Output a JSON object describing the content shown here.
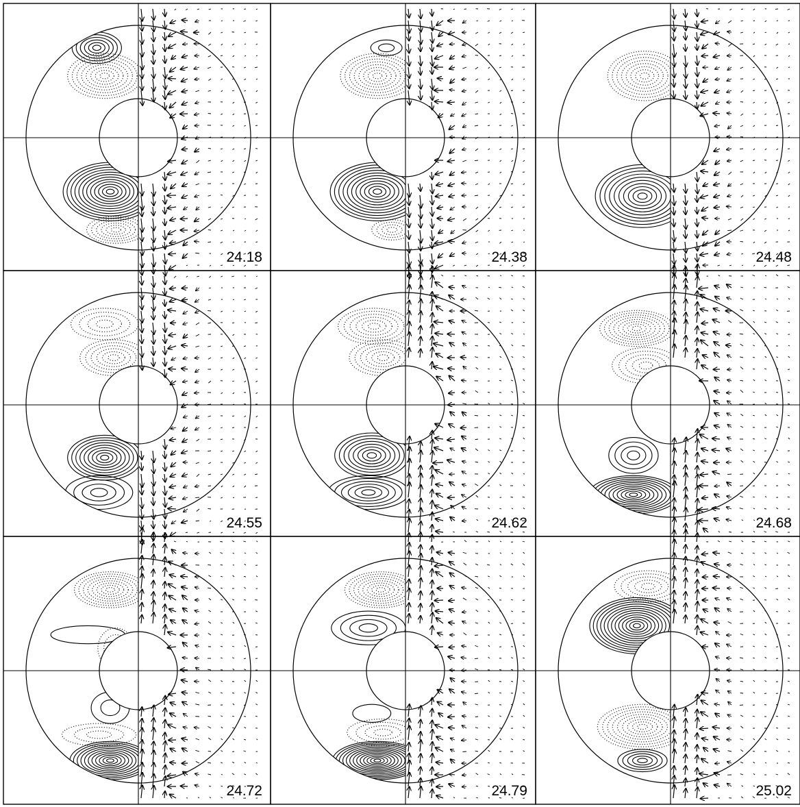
{
  "figure": {
    "line_color": "#000000",
    "background": "#ffffff",
    "panels": [
      {
        "label": "24.18",
        "contours": [
          {
            "type": "solid",
            "cx": -0.37,
            "cy": -0.8,
            "rx": 0.22,
            "ry": 0.14,
            "n": 6
          },
          {
            "type": "dotted",
            "cx": -0.3,
            "cy": -0.55,
            "rx": 0.33,
            "ry": 0.2,
            "n": 8
          },
          {
            "type": "solid",
            "cx": -0.25,
            "cy": 0.48,
            "rx": 0.42,
            "ry": 0.26,
            "n": 12
          },
          {
            "type": "dotted",
            "cx": -0.2,
            "cy": 0.82,
            "rx": 0.26,
            "ry": 0.12,
            "n": 6
          }
        ],
        "arrows": {
          "top": "down",
          "bottom": "down",
          "dense": 0.65
        }
      },
      {
        "label": "24.38",
        "contours": [
          {
            "type": "solid",
            "cx": -0.17,
            "cy": -0.8,
            "rx": 0.14,
            "ry": 0.07,
            "n": 2
          },
          {
            "type": "dotted",
            "cx": -0.25,
            "cy": -0.55,
            "rx": 0.33,
            "ry": 0.2,
            "n": 8
          },
          {
            "type": "solid",
            "cx": -0.25,
            "cy": 0.48,
            "rx": 0.42,
            "ry": 0.26,
            "n": 11
          },
          {
            "type": "dotted",
            "cx": -0.12,
            "cy": 0.82,
            "rx": 0.18,
            "ry": 0.09,
            "n": 4
          }
        ],
        "arrows": {
          "top": "down",
          "bottom": "down",
          "dense": 0.6
        }
      },
      {
        "label": "24.48",
        "contours": [
          {
            "type": "dotted",
            "cx": -0.23,
            "cy": -0.55,
            "rx": 0.33,
            "ry": 0.22,
            "n": 8
          },
          {
            "type": "solid",
            "cx": -0.25,
            "cy": 0.52,
            "rx": 0.42,
            "ry": 0.28,
            "n": 10
          }
        ],
        "arrows": {
          "top": "down",
          "bottom": "down",
          "dense": 0.55
        }
      },
      {
        "label": "24.55",
        "contours": [
          {
            "type": "dotted",
            "cx": -0.3,
            "cy": -0.72,
            "rx": 0.3,
            "ry": 0.14,
            "n": 4
          },
          {
            "type": "dotted",
            "cx": -0.22,
            "cy": -0.42,
            "rx": 0.3,
            "ry": 0.16,
            "n": 6
          },
          {
            "type": "solid",
            "cx": -0.3,
            "cy": 0.47,
            "rx": 0.33,
            "ry": 0.2,
            "n": 9
          },
          {
            "type": "solid",
            "cx": -0.35,
            "cy": 0.78,
            "rx": 0.3,
            "ry": 0.15,
            "n": 4
          }
        ],
        "arrows": {
          "top": "down",
          "bottom": "down",
          "dense": 0.55
        }
      },
      {
        "label": "24.62",
        "contours": [
          {
            "type": "dotted",
            "cx": -0.28,
            "cy": -0.7,
            "rx": 0.32,
            "ry": 0.16,
            "n": 6
          },
          {
            "type": "dotted",
            "cx": -0.2,
            "cy": -0.42,
            "rx": 0.3,
            "ry": 0.16,
            "n": 6
          },
          {
            "type": "solid",
            "cx": -0.3,
            "cy": 0.45,
            "rx": 0.33,
            "ry": 0.2,
            "n": 8
          },
          {
            "type": "solid",
            "cx": -0.33,
            "cy": 0.78,
            "rx": 0.36,
            "ry": 0.15,
            "n": 6
          }
        ],
        "arrows": {
          "top": "up",
          "bottom": "up",
          "dense": 0.7
        }
      },
      {
        "label": "24.68",
        "contours": [
          {
            "type": "dotted",
            "cx": -0.3,
            "cy": -0.68,
            "rx": 0.33,
            "ry": 0.16,
            "n": 8
          },
          {
            "type": "dotted",
            "cx": -0.22,
            "cy": -0.35,
            "rx": 0.3,
            "ry": 0.16,
            "n": 5
          },
          {
            "type": "solid",
            "cx": -0.33,
            "cy": 0.45,
            "rx": 0.22,
            "ry": 0.16,
            "n": 4
          },
          {
            "type": "solid",
            "cx": -0.33,
            "cy": 0.8,
            "rx": 0.4,
            "ry": 0.17,
            "n": 11
          }
        ],
        "arrows": {
          "top": "up",
          "bottom": "up",
          "dense": 0.7
        }
      },
      {
        "label": "24.72",
        "contours": [
          {
            "type": "dotted",
            "cx": -0.25,
            "cy": -0.72,
            "rx": 0.32,
            "ry": 0.16,
            "n": 8
          },
          {
            "type": "solid",
            "cx": -0.45,
            "cy": -0.32,
            "rx": 0.33,
            "ry": 0.08,
            "n": 1
          },
          {
            "type": "dotted",
            "cx": -0.2,
            "cy": -0.2,
            "rx": 0.16,
            "ry": 0.18,
            "n": 3
          },
          {
            "type": "solid",
            "cx": -0.25,
            "cy": 0.33,
            "rx": 0.17,
            "ry": 0.14,
            "n": 2
          },
          {
            "type": "dotted",
            "cx": -0.35,
            "cy": 0.57,
            "rx": 0.33,
            "ry": 0.1,
            "n": 3
          },
          {
            "type": "solid",
            "cx": -0.25,
            "cy": 0.8,
            "rx": 0.36,
            "ry": 0.17,
            "n": 11
          }
        ],
        "arrows": {
          "top": "up",
          "bottom": "up",
          "dense": 0.6
        }
      },
      {
        "label": "24.79",
        "contours": [
          {
            "type": "dotted",
            "cx": -0.22,
            "cy": -0.72,
            "rx": 0.32,
            "ry": 0.16,
            "n": 8
          },
          {
            "type": "solid",
            "cx": -0.33,
            "cy": -0.38,
            "rx": 0.33,
            "ry": 0.15,
            "n": 4
          },
          {
            "type": "solid",
            "cx": -0.3,
            "cy": 0.38,
            "rx": 0.17,
            "ry": 0.08,
            "n": 1
          },
          {
            "type": "dotted",
            "cx": -0.2,
            "cy": 0.55,
            "rx": 0.32,
            "ry": 0.12,
            "n": 4
          },
          {
            "type": "solid",
            "cx": -0.25,
            "cy": 0.8,
            "rx": 0.4,
            "ry": 0.17,
            "n": 13
          }
        ],
        "arrows": {
          "top": "up",
          "bottom": "up",
          "dense": 0.6
        }
      },
      {
        "label": "25.02",
        "contours": [
          {
            "type": "dotted",
            "cx": -0.2,
            "cy": -0.75,
            "rx": 0.3,
            "ry": 0.14,
            "n": 5
          },
          {
            "type": "solid",
            "cx": -0.3,
            "cy": -0.4,
            "rx": 0.42,
            "ry": 0.25,
            "n": 13
          },
          {
            "type": "dotted",
            "cx": -0.25,
            "cy": 0.5,
            "rx": 0.4,
            "ry": 0.2,
            "n": 9
          },
          {
            "type": "solid",
            "cx": -0.25,
            "cy": 0.8,
            "rx": 0.22,
            "ry": 0.1,
            "n": 5
          }
        ],
        "arrows": {
          "top": "up",
          "bottom": "up",
          "dense": 0.6
        }
      }
    ]
  }
}
